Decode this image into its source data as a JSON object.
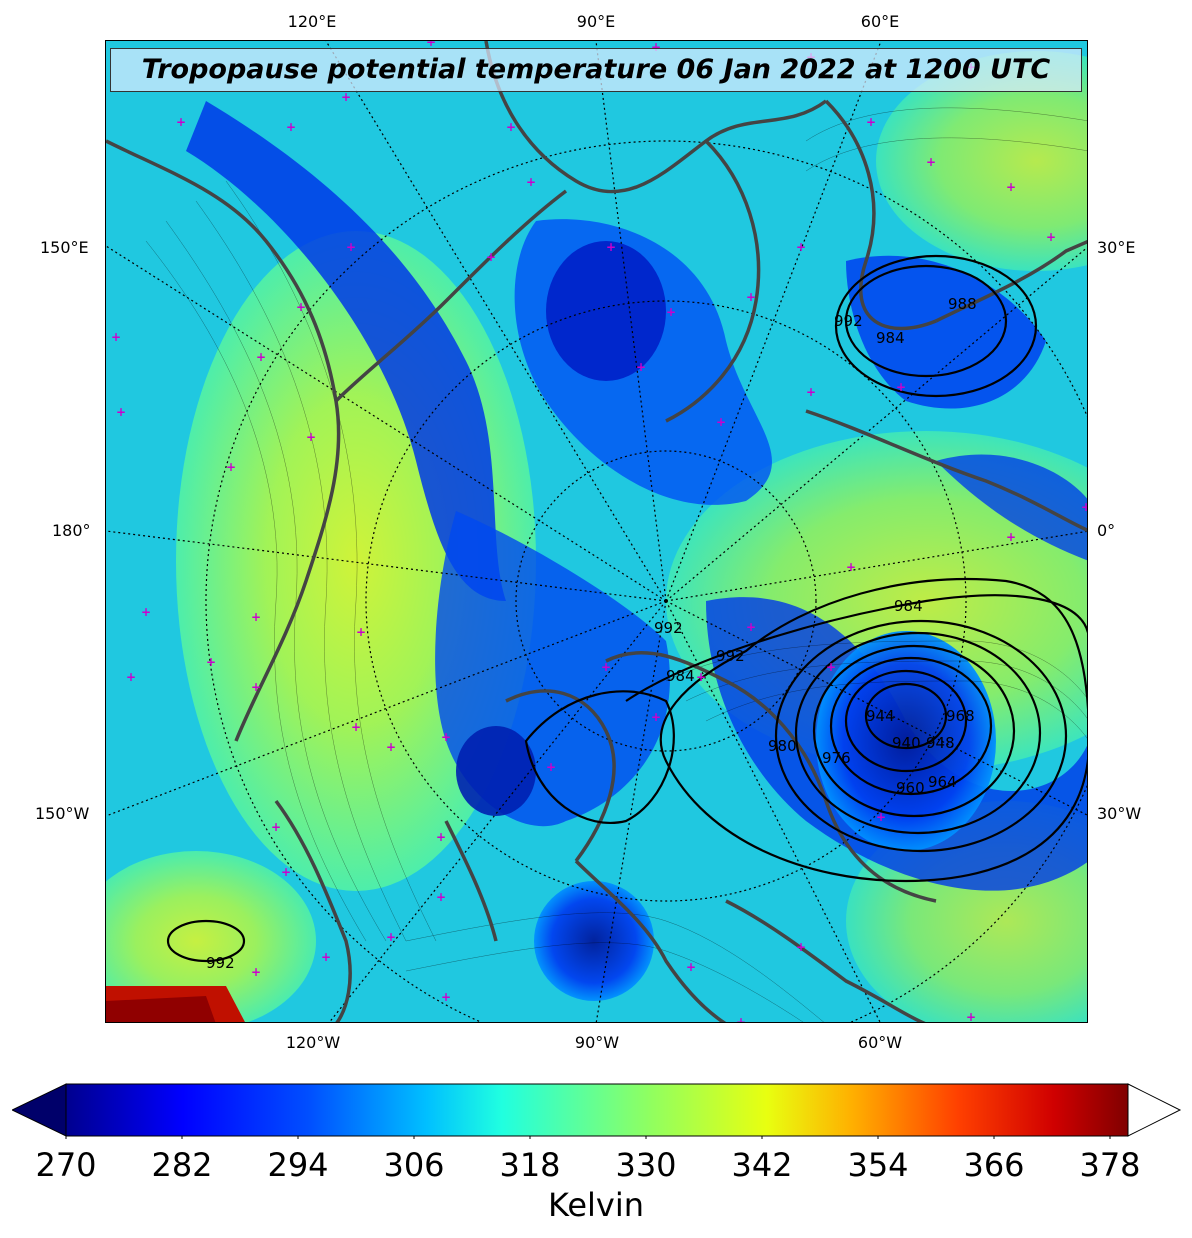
{
  "title": "Tropopause potential temperature 06 Jan 2022 at 1200 UTC",
  "lon_labels": {
    "top": [
      "120°E",
      "90°E",
      "60°E"
    ],
    "bottom": [
      "120°W",
      "90°W",
      "60°W"
    ],
    "left": [
      "150°E",
      "180°",
      "150°W"
    ],
    "right": [
      "30°E",
      "0°",
      "30°W"
    ]
  },
  "contour_labels": [
    "992",
    "984",
    "988",
    "992",
    "984",
    "980",
    "976",
    "940",
    "948",
    "960",
    "964",
    "968",
    "944",
    "992",
    "984",
    "992"
  ],
  "colorbar": {
    "ticks": [
      "270",
      "282",
      "294",
      "306",
      "318",
      "330",
      "342",
      "354",
      "366",
      "378"
    ],
    "label": "Kelvin",
    "min": 270,
    "max": 380,
    "extend": "both",
    "colormap": "jet"
  },
  "colors": {
    "coastline": "#444444",
    "marker": "#cc00cc",
    "contour": "#000000"
  }
}
